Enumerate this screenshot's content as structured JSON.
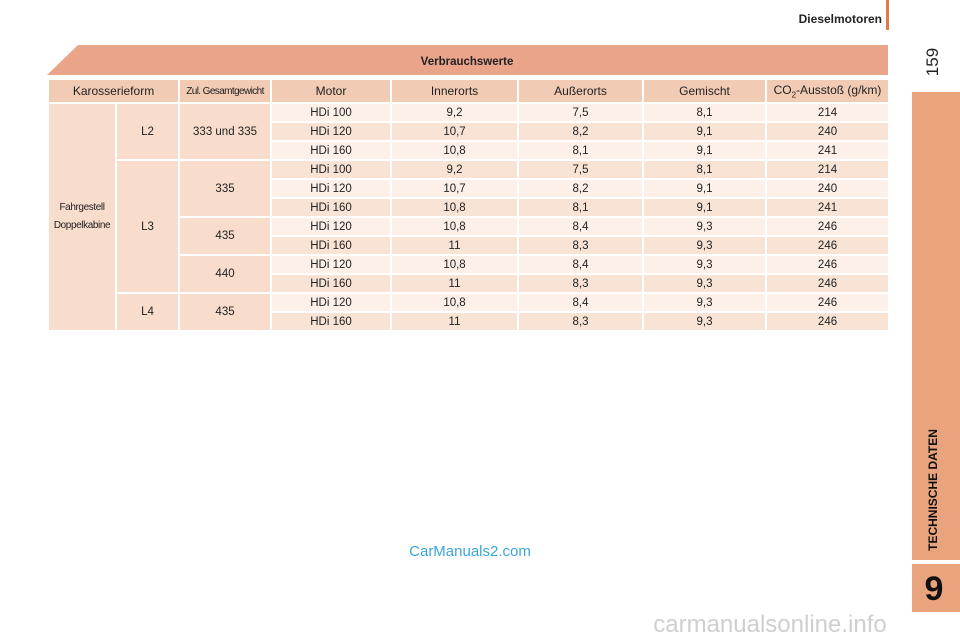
{
  "header": {
    "title": "Dieselmotoren",
    "page": "159"
  },
  "sidebar": {
    "section": "TECHNISCHE DATEN",
    "chapter": "9"
  },
  "table": {
    "title": "Verbrauchswerte",
    "columns": [
      "Karosserieform",
      "Zul. Gesamtgewicht",
      "Motor",
      "Innerorts",
      "Außerorts",
      "Gemischt",
      {
        "main": "CO",
        "sub": "2",
        "rest": "-Ausstoß (g/km)"
      }
    ],
    "body": [
      "Fahrgestell",
      "Doppelkabine"
    ],
    "groups": [
      {
        "length": "L2",
        "weights": [
          {
            "weight": "333 und 335",
            "rows": [
              [
                "HDi 100",
                "9,2",
                "7,5",
                "8,1",
                "214"
              ],
              [
                "HDi 120",
                "10,7",
                "8,2",
                "9,1",
                "240"
              ],
              [
                "HDi 160",
                "10,8",
                "8,1",
                "9,1",
                "241"
              ]
            ]
          }
        ]
      },
      {
        "length": "L3",
        "weights": [
          {
            "weight": "335",
            "rows": [
              [
                "HDi 100",
                "9,2",
                "7,5",
                "8,1",
                "214"
              ],
              [
                "HDi 120",
                "10,7",
                "8,2",
                "9,1",
                "240"
              ],
              [
                "HDi 160",
                "10,8",
                "8,1",
                "9,1",
                "241"
              ]
            ]
          },
          {
            "weight": "435",
            "rows": [
              [
                "HDi 120",
                "10,8",
                "8,4",
                "9,3",
                "246"
              ],
              [
                "HDi 160",
                "11",
                "8,3",
                "9,3",
                "246"
              ]
            ]
          },
          {
            "weight": "440",
            "rows": [
              [
                "HDi 120",
                "10,8",
                "8,4",
                "9,3",
                "246"
              ],
              [
                "HDi 160",
                "11",
                "8,3",
                "9,3",
                "246"
              ]
            ]
          }
        ]
      },
      {
        "length": "L4",
        "weights": [
          {
            "weight": "435",
            "rows": [
              [
                "HDi 120",
                "10,8",
                "8,4",
                "9,3",
                "246"
              ],
              [
                "HDi 160",
                "11",
                "8,3",
                "9,3",
                "246"
              ]
            ]
          }
        ]
      }
    ]
  },
  "watermarks": [
    "CarManuals2.com",
    "carmanualsonline.info"
  ]
}
